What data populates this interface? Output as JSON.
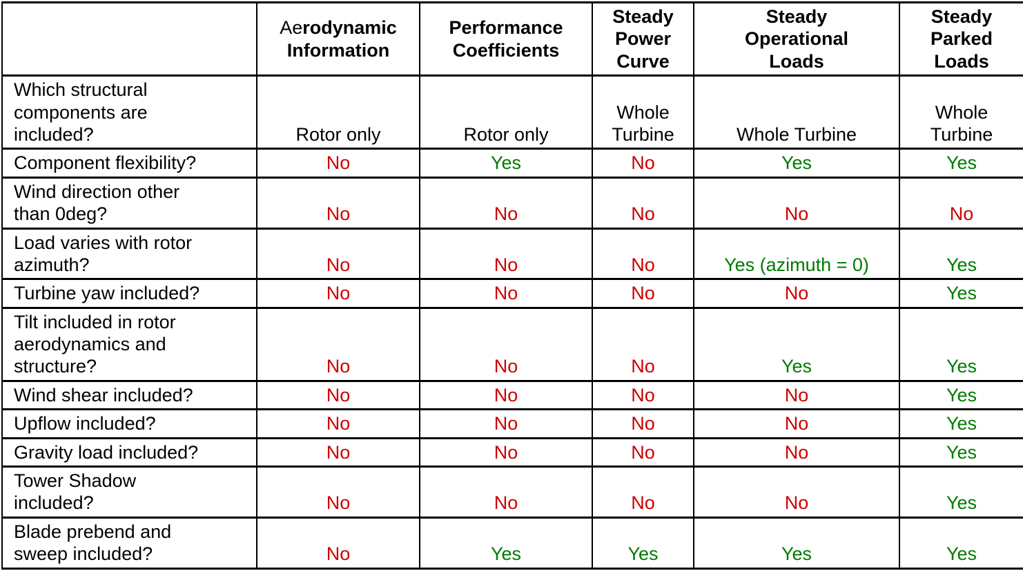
{
  "colors": {
    "yes": "#007A00",
    "no": "#CC0000",
    "text": "#000000",
    "border": "#000000",
    "background": "#FFFFFF"
  },
  "table": {
    "header": [
      {
        "plain": "Ae",
        "bold": "rodynamic\nInformation"
      },
      {
        "plain": "",
        "bold": "Performance\nCoefficients"
      },
      {
        "plain": "",
        "bold": "Steady\nPower\nCurve"
      },
      {
        "plain": "",
        "bold": "Steady\nOperational\nLoads"
      },
      {
        "plain": "",
        "bold": "Steady\nParked\nLoads"
      }
    ],
    "rows": [
      {
        "label": "Which structural\ncomponents are\nincluded?",
        "cells": [
          {
            "text": "Rotor only",
            "type": "neutral"
          },
          {
            "text": "Rotor only",
            "type": "neutral"
          },
          {
            "text": "Whole\nTurbine",
            "type": "neutral"
          },
          {
            "text": "Whole Turbine",
            "type": "neutral"
          },
          {
            "text": "Whole\nTurbine",
            "type": "neutral"
          }
        ]
      },
      {
        "label": "Component flexibility?",
        "cells": [
          {
            "text": "No",
            "type": "no"
          },
          {
            "text": "Yes",
            "type": "yes"
          },
          {
            "text": "No",
            "type": "no"
          },
          {
            "text": "Yes",
            "type": "yes"
          },
          {
            "text": "Yes",
            "type": "yes"
          }
        ]
      },
      {
        "label": "Wind direction other\nthan 0deg?",
        "cells": [
          {
            "text": "No",
            "type": "no"
          },
          {
            "text": "No",
            "type": "no"
          },
          {
            "text": "No",
            "type": "no"
          },
          {
            "text": "No",
            "type": "no"
          },
          {
            "text": "No",
            "type": "no"
          }
        ]
      },
      {
        "label": "Load varies with rotor\nazimuth?",
        "cells": [
          {
            "text": "No",
            "type": "no"
          },
          {
            "text": "No",
            "type": "no"
          },
          {
            "text": "No",
            "type": "no"
          },
          {
            "text": "Yes (azimuth = 0)",
            "type": "yes"
          },
          {
            "text": "Yes",
            "type": "yes"
          }
        ]
      },
      {
        "label": "Turbine yaw included?",
        "cells": [
          {
            "text": "No",
            "type": "no"
          },
          {
            "text": "No",
            "type": "no"
          },
          {
            "text": "No",
            "type": "no"
          },
          {
            "text": "No",
            "type": "no"
          },
          {
            "text": "Yes",
            "type": "yes"
          }
        ]
      },
      {
        "label": "Tilt included in rotor\naerodynamics and\nstructure?",
        "cells": [
          {
            "text": "No",
            "type": "no"
          },
          {
            "text": "No",
            "type": "no"
          },
          {
            "text": "No",
            "type": "no"
          },
          {
            "text": "Yes",
            "type": "yes"
          },
          {
            "text": "Yes",
            "type": "yes"
          }
        ]
      },
      {
        "label": "Wind shear included?",
        "cells": [
          {
            "text": "No",
            "type": "no"
          },
          {
            "text": "No",
            "type": "no"
          },
          {
            "text": "No",
            "type": "no"
          },
          {
            "text": "No",
            "type": "no"
          },
          {
            "text": "Yes",
            "type": "yes"
          }
        ]
      },
      {
        "label": "Upflow included?",
        "cells": [
          {
            "text": "No",
            "type": "no"
          },
          {
            "text": "No",
            "type": "no"
          },
          {
            "text": "No",
            "type": "no"
          },
          {
            "text": "No",
            "type": "no"
          },
          {
            "text": "Yes",
            "type": "yes"
          }
        ]
      },
      {
        "label": "Gravity load included?",
        "cells": [
          {
            "text": "No",
            "type": "no"
          },
          {
            "text": "No",
            "type": "no"
          },
          {
            "text": "No",
            "type": "no"
          },
          {
            "text": "No",
            "type": "no"
          },
          {
            "text": "Yes",
            "type": "yes"
          }
        ]
      },
      {
        "label": "Tower Shadow\nincluded?",
        "cells": [
          {
            "text": "No",
            "type": "no"
          },
          {
            "text": "No",
            "type": "no"
          },
          {
            "text": "No",
            "type": "no"
          },
          {
            "text": "No",
            "type": "no"
          },
          {
            "text": "Yes",
            "type": "yes"
          }
        ]
      },
      {
        "label": "Blade prebend and\nsweep included?",
        "cells": [
          {
            "text": "No",
            "type": "no"
          },
          {
            "text": "Yes",
            "type": "yes"
          },
          {
            "text": "Yes",
            "type": "yes"
          },
          {
            "text": "Yes",
            "type": "yes"
          },
          {
            "text": "Yes",
            "type": "yes"
          }
        ]
      }
    ]
  }
}
